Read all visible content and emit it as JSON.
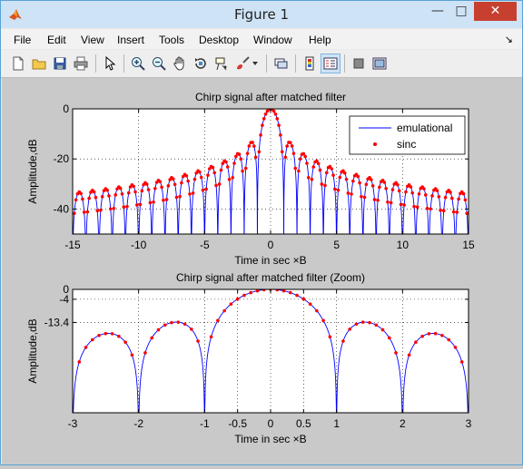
{
  "window": {
    "title": "Figure 1",
    "minimize": "—",
    "maximize": "□",
    "close": "✕"
  },
  "menu": [
    "File",
    "Edit",
    "View",
    "Insert",
    "Tools",
    "Desktop",
    "Window",
    "Help"
  ],
  "menu_dock_arrow": "↘",
  "toolbar": [
    "new-figure-icon",
    "open-file-icon",
    "save-icon",
    "print-icon",
    "pointer-icon",
    "zoom-in-icon",
    "zoom-out-icon",
    "pan-icon",
    "rotate-3d-icon",
    "data-cursor-icon",
    "brush-icon",
    "brush-dropdown-icon",
    "link-icon",
    "colorbar-icon",
    "legend-icon",
    "hide-plot-tools-icon",
    "show-plot-tools-icon"
  ],
  "chart_data": [
    {
      "type": "line",
      "title": "Chirp signal after matched filter",
      "xlabel": "Time in sec ×B",
      "ylabel": "Amplitude,dB",
      "xlim": [
        -15,
        15
      ],
      "ylim": [
        -50,
        0
      ],
      "xticks": [
        "-15",
        "-10",
        "-5",
        "0",
        "5",
        "10",
        "15"
      ],
      "yticks": [
        "0",
        "-20",
        "-40"
      ],
      "grid": true,
      "legend": {
        "position": "top-right",
        "entries": [
          "emulational",
          "sinc"
        ]
      },
      "series": [
        {
          "name": "emulational",
          "kind": "line",
          "color": "#0000ff",
          "formula": "20*log10(|sin(pi*x)/(pi*x)|)",
          "x_range": [
            -15,
            15
          ]
        },
        {
          "name": "sinc",
          "kind": "markers",
          "color": "#ff0000",
          "marker": "dot",
          "formula": "20*log10(|sin(pi*x)/(pi*x)|)",
          "x_range": [
            -15,
            15
          ],
          "x_step": 0.125
        }
      ]
    },
    {
      "type": "line",
      "title": "Chirp signal after matched filter (Zoom)",
      "xlabel": "Time in sec ×B",
      "ylabel": "Amplitude,dB",
      "xlim": [
        -3,
        3
      ],
      "ylim": [
        -50,
        0
      ],
      "xticks": [
        "-3",
        "-2",
        "-1",
        "-0.5",
        "0",
        "0.5",
        "1",
        "2",
        "3"
      ],
      "yticks": [
        "0",
        "-4",
        "-13.4"
      ],
      "grid": true,
      "series": [
        {
          "kind": "line",
          "color": "#0000ff",
          "formula": "20*log10(|sin(pi*x)/(pi*x)|)",
          "x_range": [
            -3,
            3
          ]
        },
        {
          "kind": "markers",
          "color": "#ff0000",
          "marker": "dot",
          "formula": "20*log10(|sin(pi*x)/(pi*x)|)",
          "x_range": [
            -3,
            3
          ],
          "x_step": 0.1
        }
      ]
    }
  ]
}
